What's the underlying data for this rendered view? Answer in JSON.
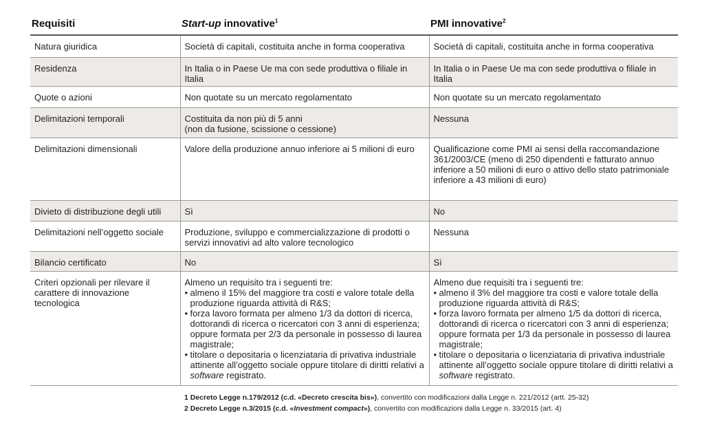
{
  "table": {
    "headers": {
      "col1": "Requisiti",
      "col2_italic": "Start-up",
      "col2_rest": " innovative",
      "col2_sup": "1",
      "col3": "PMI innovative",
      "col3_sup": "2"
    },
    "rows": {
      "natura": {
        "label": "Natura giuridica",
        "startup": "Società di capitali, costituita anche in forma cooperativa",
        "pmi": "Società di capitali, costituita anche in forma cooperativa"
      },
      "residenza": {
        "label": "Residenza",
        "startup": "In Italia o in Paese Ue ma con sede produttiva o filiale in Italia",
        "pmi": "In Italia o in Paese Ue ma con sede produttiva o filiale in Italia"
      },
      "quote": {
        "label": "Quote o azioni",
        "startup": "Non quotate su un mercato regolamentato",
        "pmi": "Non quotate su un mercato regolamentato"
      },
      "temporali": {
        "label": "Delimitazioni temporali",
        "startup_1": "Costituita da non più di 5 anni",
        "startup_2": "(non da fusione, scissione o cessione)",
        "pmi": "Nessuna"
      },
      "dimensionali": {
        "label": "Delimitazioni dimensionali",
        "startup": "Valore della produzione annuo inferiore ai 5 milioni di euro",
        "pmi": "Qualificazione come PMI ai sensi della raccomandazione 361/2003/CE (meno di 250 dipendenti e fatturato annuo inferiore a 50 milioni di euro o attivo dello stato patrimoniale inferiore a 43 milioni di euro)"
      },
      "utili": {
        "label": "Divieto di distribuzione degli utili",
        "startup": "Sì",
        "pmi": "No"
      },
      "oggetto": {
        "label": "Delimitazioni nell’oggetto sociale",
        "startup": "Produzione, sviluppo e commercializzazione di prodotti o servizi innovativi ad alto valore tecnologico",
        "pmi": "Nessuna"
      },
      "bilancio": {
        "label": "Bilancio certificato",
        "startup": "No",
        "pmi": "Sì"
      },
      "criteri": {
        "label": "Criteri opzionali per rilevare il carattere di innovazione tecnologica",
        "startup": {
          "intro": "Almeno un requisito tra i seguenti tre:",
          "b1": "almeno il 15% del maggiore tra costi e valore totale della produzione riguarda attività di R&S;",
          "b2": "forza lavoro formata per almeno 1/3 da dottori di ricerca, dottorandi di ricerca o ricercatori con 3 anni di esperienza; oppure formata per 2/3 da personale in possesso di laurea magistrale;",
          "b3_pre": "titolare o depositaria o licenziataria di privativa industriale attinente all’oggetto sociale oppure titolare di diritti relativi a ",
          "b3_it": "software",
          "b3_post": " registrato."
        },
        "pmi": {
          "intro": "Almeno due requisiti tra i seguenti tre:",
          "b1": "almeno il 3% del maggiore tra costi e valore totale della produzione riguarda attività di R&S;",
          "b2": "forza lavoro formata per almeno 1/5 da dottori di ricerca, dottorandi di ricerca o ricercatori con 3 anni di esperienza; oppure formata per 1/3 da personale in possesso di laurea magistrale;",
          "b3_pre": "titolare o depositaria o licenziataria di privativa industriale attinente all’oggetto sociale oppure titolare di diritti relativi a ",
          "b3_it": "software",
          "b3_post": " registrato."
        }
      }
    }
  },
  "footnotes": {
    "n1": {
      "bold": "1  Decreto Legge n.179/2012 (c.d. «Decreto crescita bis»)",
      "rest": ", convertito con modificazioni dalla Legge n. 221/2012 (artt. 25-32)"
    },
    "n2": {
      "bold_pre": "2 Decreto Legge n.3/2015 (c.d. «",
      "bold_it": "Investment compact",
      "bold_post": "»)",
      "rest": ", convertito con modificazioni dalla Legge n. 33/2015 (art. 4)"
    }
  }
}
